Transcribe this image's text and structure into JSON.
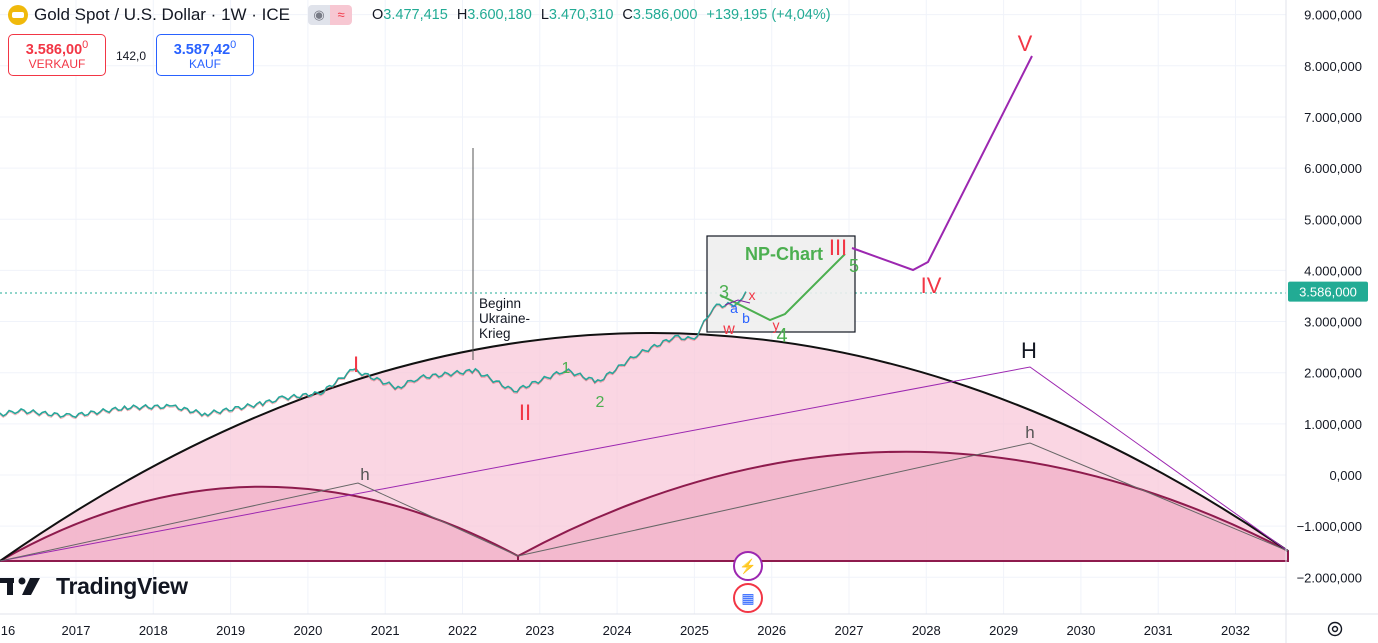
{
  "header": {
    "title": "Gold Spot / U.S. Dollar · 1W · ICE",
    "indicator_icon": "eye-off-icon",
    "indicator_wave": "≈",
    "ohlc": {
      "o_label": "O",
      "o": "3.477,415",
      "h_label": "H",
      "h": "3.600,180",
      "l_label": "L",
      "l": "3.470,310",
      "c_label": "C",
      "c": "3.586,000",
      "change": "+139,195 (+4,04%)"
    }
  },
  "trade": {
    "sell_price_main": "3.586,00",
    "sell_price_small": "0",
    "sell_label": "VERKAUF",
    "spread": "142,0",
    "buy_price_main": "3.587,42",
    "buy_price_small": "0",
    "buy_label": "KAUF"
  },
  "brand": {
    "name": "TradingView"
  },
  "chart_data": {
    "type": "line",
    "x": [
      "2015-10",
      "2016-04",
      "2016-12",
      "2017-09",
      "2018-04",
      "2018-09",
      "2019-06",
      "2019-09",
      "2020-03",
      "2020-08",
      "2021-03",
      "2021-06",
      "2022-03",
      "2022-09",
      "2023-05",
      "2023-10",
      "2024-04",
      "2024-10",
      "2025-01",
      "2025-04",
      "2025-08",
      "2025-09"
    ],
    "series": [
      {
        "values": [
          1080,
          1260,
          1150,
          1320,
          1340,
          1190,
          1400,
          1500,
          1600,
          2060,
          1700,
          1900,
          2040,
          1640,
          2050,
          1820,
          2350,
          2700,
          2650,
          3300,
          3350,
          3586
        ]
      }
    ],
    "x_ticks": [
      "16",
      "2017",
      "2018",
      "2019",
      "2020",
      "2021",
      "2022",
      "2023",
      "2024",
      "2025",
      "2026",
      "2027",
      "2028",
      "2029",
      "2030",
      "2031",
      "2032"
    ],
    "y_ticks": [
      "9.000,000",
      "8.000,000",
      "7.000,000",
      "6.000,000",
      "5.000,000",
      "4.000,000",
      "3.000,000",
      "2.000,000",
      "1.000,000",
      "0,000",
      "−1.000,000",
      "−2.000,000"
    ],
    "ylim": [
      -2200,
      9300
    ],
    "current_price_label": "3.586,000",
    "current_price": 3586,
    "colors": {
      "candles": "#26a69a",
      "axis_text": "#131722",
      "big_arc_fill": "#f8c8da",
      "small_arc_fill": "#f2b6cb",
      "small_arc_stroke": "#8e1b4d",
      "wave_line": "#9c27b0",
      "red_label": "#f23645",
      "green_label": "#4caf50",
      "price_tag": "#22ab94"
    },
    "annotations": {
      "event_text": "Beginn Ukraine-Krieg",
      "event_lines": [
        "Beginn",
        "Ukraine-",
        "Krieg"
      ],
      "np_chart": "NP-Chart",
      "wave_I": "I",
      "wave_II": "II",
      "wave_III": "III",
      "wave_IV": "IV",
      "wave_V": "V",
      "sub_1": "1",
      "sub_2": "2",
      "sub_3": "3",
      "sub_4": "4",
      "sub_5": "5",
      "corr_w": "w",
      "corr_x": "x",
      "corr_y": "y",
      "corr_a": "a",
      "corr_b": "b",
      "cycle_H": "H",
      "cycle_h1": "h",
      "cycle_h2": "h"
    }
  }
}
